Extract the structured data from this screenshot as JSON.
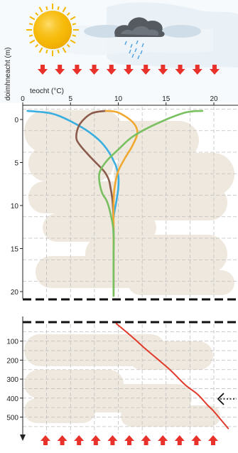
{
  "top_chart": {
    "ylabel": "doimhneacht (m)",
    "xlabel": "teocht (°C)",
    "x_ticks": [
      "0",
      "5",
      "10",
      "15",
      "20"
    ],
    "y_ticks": [
      "0",
      "5",
      "10",
      "15",
      "20"
    ]
  },
  "bottom_chart": {
    "y_ticks": [
      "100",
      "200",
      "300",
      "400",
      "500"
    ]
  },
  "colors": {
    "sun": "#f5b800",
    "cloud": "#555a60",
    "rain": "#4aa0e0",
    "heat_arrow": "#e8312a",
    "grid": "#bfbfbf",
    "thermocline": "#111111",
    "series_blue": "#3aaee0",
    "series_brown": "#8a5a4a",
    "series_orange": "#f0a830",
    "series_green": "#78c060",
    "deep_series": "#e03a2a"
  },
  "icons": [
    "sun-icon",
    "rain-cloud-icon",
    "down-arrow-icon",
    "up-arrow-icon",
    "dotted-left-arrow-icon"
  ],
  "chart_data": [
    {
      "type": "line",
      "xlabel": "teocht (°C)",
      "ylabel": "doimhneacht (m)",
      "xlim": [
        0,
        21
      ],
      "ylim": [
        21,
        -1.3
      ],
      "series": [
        {
          "color": "#3aaee0",
          "points": [
            [
              0.5,
              -1.0
            ],
            [
              3,
              -0.7
            ],
            [
              5,
              0.2
            ],
            [
              7,
              1.5
            ],
            [
              8.5,
              3
            ],
            [
              9.6,
              5
            ],
            [
              10,
              6.5
            ],
            [
              10,
              8
            ],
            [
              9.8,
              9.5
            ],
            [
              9.5,
              11.5
            ],
            [
              9.5,
              14
            ],
            [
              9.5,
              16
            ],
            [
              9.5,
              18
            ],
            [
              9.5,
              20.5
            ]
          ]
        },
        {
          "color": "#8a5a4a",
          "points": [
            [
              8.7,
              -1.0
            ],
            [
              7.2,
              -0.7
            ],
            [
              6,
              0.5
            ],
            [
              5.6,
              2
            ],
            [
              6,
              3
            ],
            [
              7.2,
              4.5
            ],
            [
              8.5,
              6
            ],
            [
              9,
              7
            ],
            [
              9.2,
              8
            ],
            [
              9.4,
              9.5
            ],
            [
              9.5,
              12
            ],
            [
              9.5,
              15
            ],
            [
              9.5,
              18
            ],
            [
              9.5,
              20.5
            ]
          ]
        },
        {
          "color": "#f0a830",
          "points": [
            [
              8.7,
              -1.0
            ],
            [
              10,
              -0.8
            ],
            [
              11.5,
              0.3
            ],
            [
              12,
              1.5
            ],
            [
              11.5,
              3
            ],
            [
              10.7,
              4.5
            ],
            [
              10,
              6
            ],
            [
              9.6,
              8
            ],
            [
              9.5,
              10
            ],
            [
              9.5,
              12.5
            ],
            [
              9.5,
              15
            ],
            [
              9.5,
              18
            ],
            [
              9.5,
              20.5
            ]
          ]
        },
        {
          "color": "#78c060",
          "points": [
            [
              18.8,
              -1.0
            ],
            [
              17,
              -0.8
            ],
            [
              14,
              0.5
            ],
            [
              11.5,
              2
            ],
            [
              10,
              3.5
            ],
            [
              8.8,
              4.8
            ],
            [
              8.1,
              6
            ],
            [
              8,
              7
            ],
            [
              8.3,
              8.5
            ],
            [
              8.8,
              9.5
            ],
            [
              9.2,
              11
            ],
            [
              9.5,
              13
            ],
            [
              9.5,
              16
            ],
            [
              9.5,
              18.5
            ],
            [
              9.5,
              20.5
            ]
          ]
        }
      ]
    },
    {
      "type": "line",
      "ylim": [
        -10,
        590
      ],
      "series": [
        {
          "color": "#e03a2a",
          "points": [
            [
              9.8,
              8
            ],
            [
              11.5,
              80
            ],
            [
              12.6,
              130
            ],
            [
              14,
              190
            ],
            [
              15.5,
              255
            ],
            [
              17,
              330
            ],
            [
              18.3,
              380
            ],
            [
              19.4,
              440
            ],
            [
              20,
              470
            ],
            [
              21.5,
              560
            ]
          ]
        }
      ]
    }
  ]
}
